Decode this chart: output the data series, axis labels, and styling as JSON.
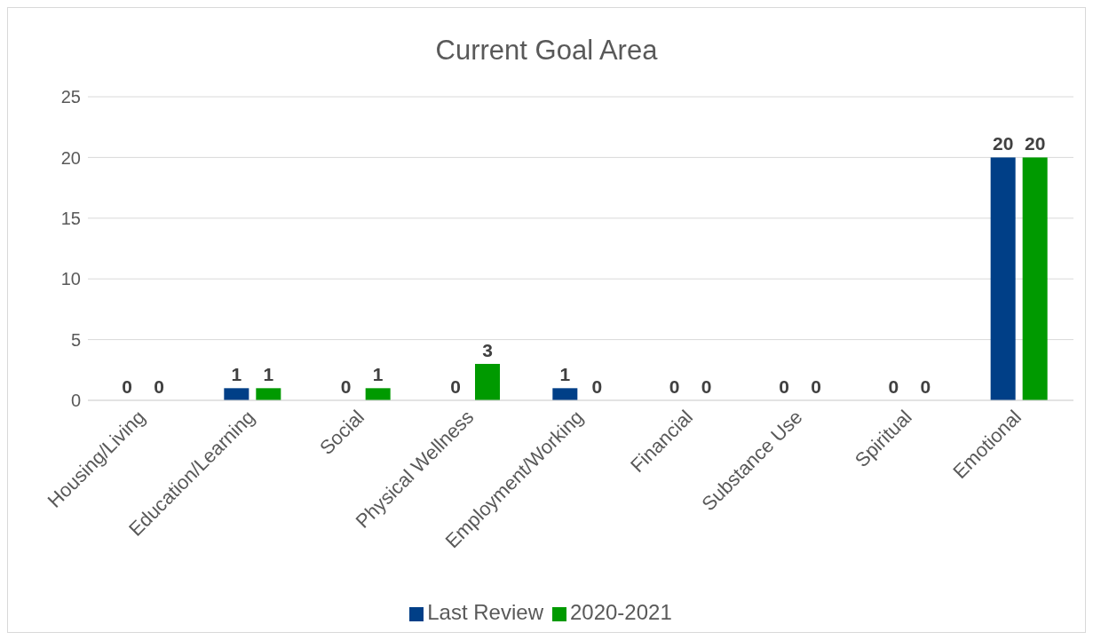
{
  "chart_data": {
    "type": "bar",
    "title": "Current Goal Area",
    "categories": [
      "Housing/Living",
      "Education/Learning",
      "Social",
      "Physical Wellness",
      "Employment/Working",
      "Financial",
      "Substance Use",
      "Spiritual",
      "Emotional"
    ],
    "series": [
      {
        "name": "Last Review",
        "color": "#003f87",
        "values": [
          0,
          1,
          0,
          0,
          1,
          0,
          0,
          0,
          20
        ]
      },
      {
        "name": "2020-2021",
        "color": "#009a00",
        "values": [
          0,
          1,
          1,
          3,
          0,
          0,
          0,
          0,
          20
        ]
      }
    ],
    "ylim": [
      0,
      25
    ],
    "yticks": [
      0,
      5,
      10,
      15,
      20,
      25
    ],
    "grid": "y",
    "legend": "bottom",
    "data_labels": true
  }
}
